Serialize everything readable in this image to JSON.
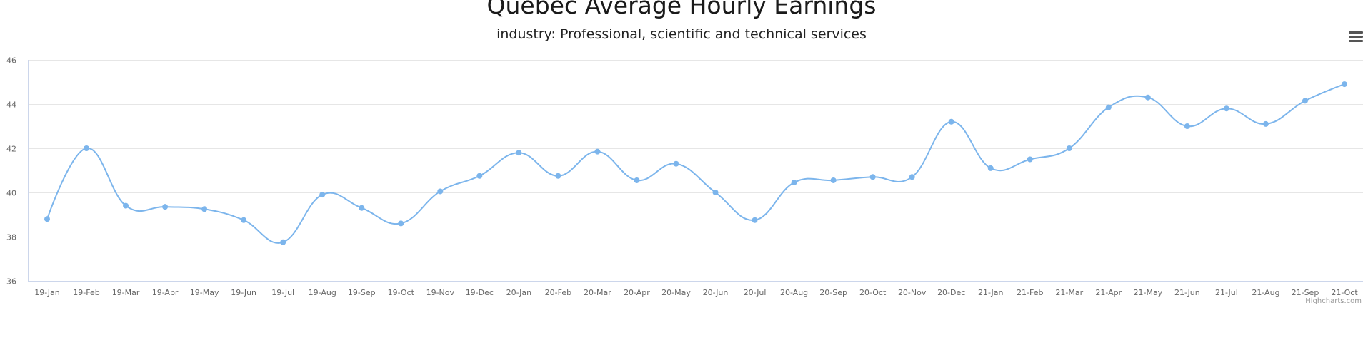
{
  "chart_data": {
    "type": "line",
    "title": "Quebec Average Hourly Earnings",
    "subtitle": "industry: Professional, scientific and technical services",
    "xlabel": "",
    "ylabel": "",
    "ylim": [
      36,
      46
    ],
    "yticks": [
      36,
      38,
      40,
      42,
      44,
      46
    ],
    "grid": true,
    "legend": "none",
    "smooth": true,
    "series_color": "#7cb5ec",
    "categories": [
      "19-Jan",
      "19-Feb",
      "19-Mar",
      "19-Apr",
      "19-May",
      "19-Jun",
      "19-Jul",
      "19-Aug",
      "19-Sep",
      "19-Oct",
      "19-Nov",
      "19-Dec",
      "20-Jan",
      "20-Feb",
      "20-Mar",
      "20-Apr",
      "20-May",
      "20-Jun",
      "20-Jul",
      "20-Aug",
      "20-Sep",
      "20-Oct",
      "20-Nov",
      "20-Dec",
      "21-Jan",
      "21-Feb",
      "21-Mar",
      "21-Apr",
      "21-May",
      "21-Jun",
      "21-Jul",
      "21-Aug",
      "21-Sep",
      "21-Oct"
    ],
    "series": [
      {
        "values": [
          38.8,
          42.0,
          39.4,
          39.35,
          39.25,
          38.75,
          37.75,
          39.9,
          39.3,
          38.6,
          40.05,
          40.75,
          41.8,
          40.75,
          41.85,
          40.55,
          41.3,
          40.0,
          38.75,
          40.45,
          40.55,
          40.7,
          40.7,
          43.2,
          41.1,
          41.5,
          42.0,
          43.85,
          44.3,
          43.0,
          43.8,
          43.1,
          44.15,
          44.9
        ]
      }
    ]
  },
  "credits": "Highcharts.com"
}
